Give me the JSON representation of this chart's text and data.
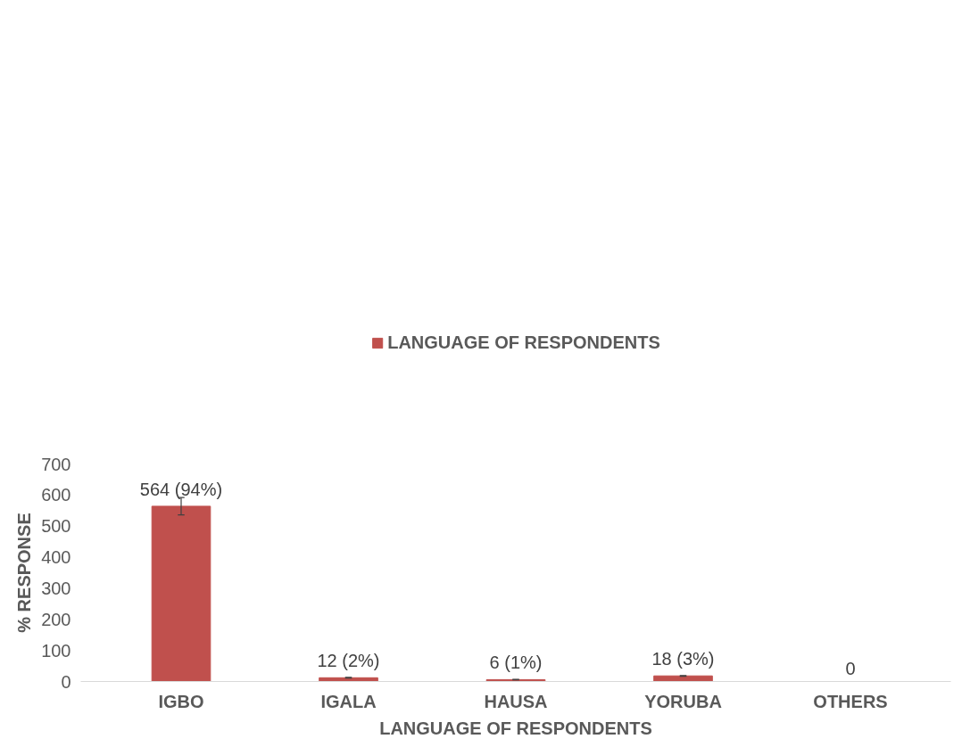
{
  "chart_data": {
    "type": "bar",
    "xlabel": "LANGUAGE OF RESPONDENTS",
    "ylabel": "% RESPONSE",
    "categories": [
      "IGBO",
      "IGALA",
      "HAUSA",
      "YORUBA",
      "OTHERS"
    ],
    "series": [
      {
        "name": "LANGUAGE OF RESPONDENTS",
        "color": "#c0504d",
        "values": [
          564,
          12,
          6,
          18,
          0
        ],
        "errors": [
          28,
          1,
          1,
          1,
          null
        ],
        "value_labels": [
          "564 (94%)",
          "12 (2%)",
          "6 (1%)",
          "18 (3%)",
          "0"
        ]
      }
    ],
    "ylim": [
      0,
      700
    ],
    "yticks": [
      0,
      100,
      200,
      300,
      400,
      500,
      600,
      700
    ],
    "grid": false,
    "legend": "top"
  }
}
